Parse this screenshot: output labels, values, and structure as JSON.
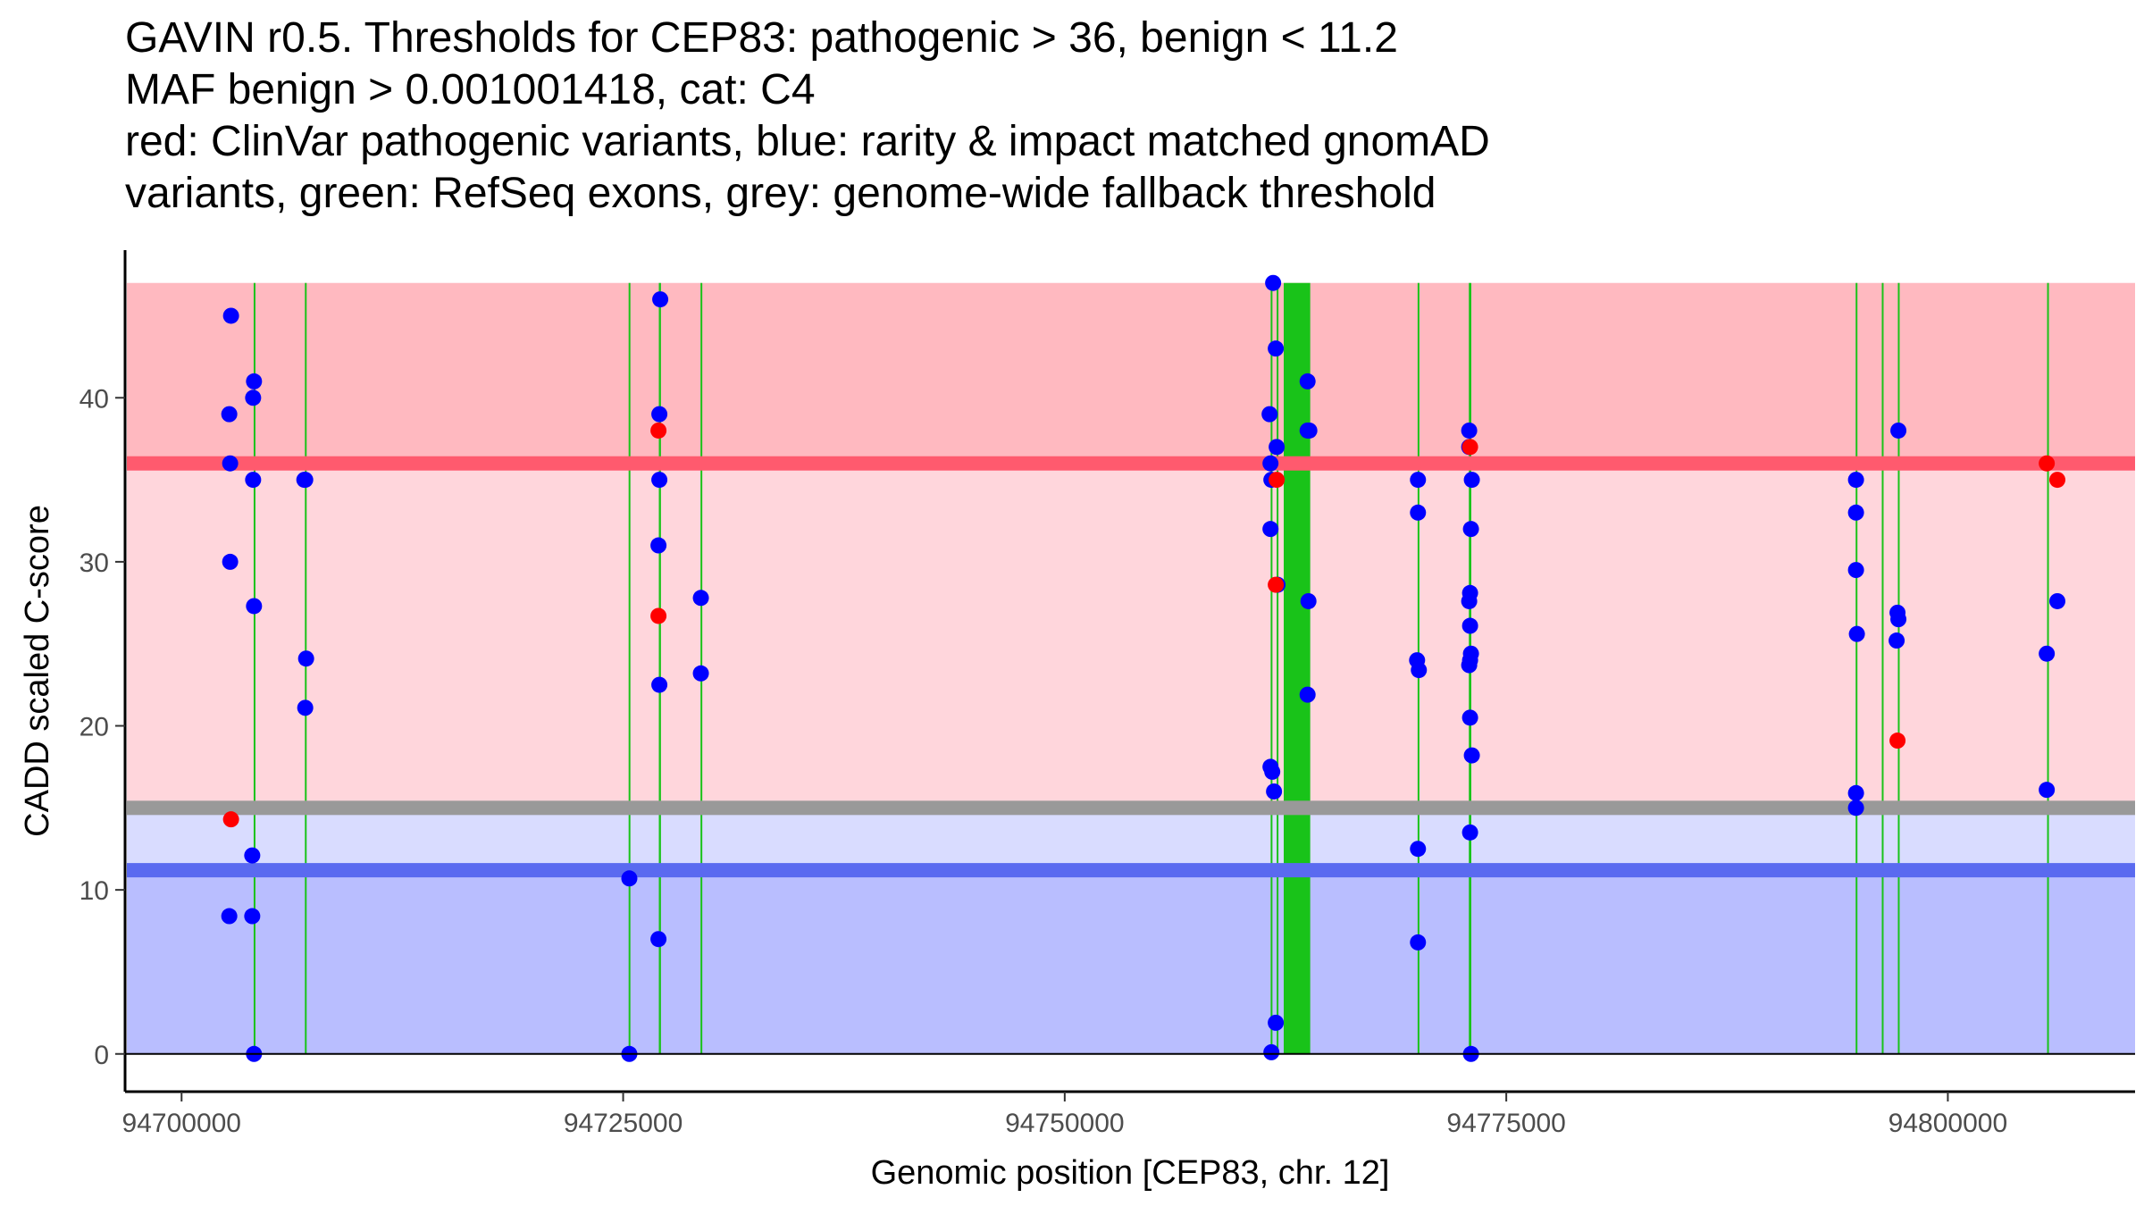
{
  "chart_data": {
    "type": "scatter",
    "title_lines": [
      "GAVIN r0.5. Thresholds for CEP83: pathogenic > 36, benign < 11.2",
      "MAF benign > 0.001001418, cat: C4",
      "red: ClinVar pathogenic variants, blue: rarity & impact matched gnomAD",
      "variants, green: RefSeq exons, grey: genome-wide fallback threshold"
    ],
    "xlabel": "Genomic position [CEP83, chr. 12]",
    "ylabel": "CADD scaled C-score",
    "xlim": [
      94696800,
      94810600
    ],
    "ylim": [
      -2.3,
      49
    ],
    "x_ticks": [
      94700000,
      94725000,
      94750000,
      94775000,
      94800000
    ],
    "x_tick_labels": [
      "94700000",
      "94725000",
      "94750000",
      "94775000",
      "94800000"
    ],
    "y_ticks": [
      0,
      10,
      20,
      30,
      40
    ],
    "y_tick_labels": [
      "0",
      "10",
      "20",
      "30",
      "40"
    ],
    "thresholds": {
      "pathogenic": 36,
      "benign": 11.2,
      "fallback": 15,
      "max": 47
    },
    "colors": {
      "pathogenic_zone": "#ffb9c0",
      "mid_zone": "#ffd6dc",
      "benign_light_zone": "#d9dcff",
      "benign_zone": "#b9beff",
      "pathogenic_line": "#ff5a6e",
      "benign_line": "#5a6af0",
      "fallback_line": "#999999",
      "exon": "#19c319",
      "clinvar": "#ff0000",
      "gnomad": "#0000ff"
    },
    "exons": [
      {
        "start": 94704080,
        "end": 94704180
      },
      {
        "start": 94706980,
        "end": 94707060
      },
      {
        "start": 94725310,
        "end": 94725390
      },
      {
        "start": 94727020,
        "end": 94727140
      },
      {
        "start": 94729380,
        "end": 94729440
      },
      {
        "start": 94761660,
        "end": 94761720
      },
      {
        "start": 94762000,
        "end": 94762080
      },
      {
        "start": 94762400,
        "end": 94763900
      },
      {
        "start": 94769980,
        "end": 94770040
      },
      {
        "start": 94772880,
        "end": 94773020
      },
      {
        "start": 94794780,
        "end": 94794840
      },
      {
        "start": 94796260,
        "end": 94796320
      },
      {
        "start": 94797170,
        "end": 94797230
      },
      {
        "start": 94805620,
        "end": 94805680
      }
    ],
    "series": [
      {
        "name": "gnomAD",
        "color": "#0000ff",
        "points": [
          [
            94702800,
            45
          ],
          [
            94702700,
            39
          ],
          [
            94702750,
            36
          ],
          [
            94702750,
            30
          ],
          [
            94702700,
            8.4
          ],
          [
            94704100,
            41
          ],
          [
            94704050,
            40
          ],
          [
            94704050,
            35
          ],
          [
            94704100,
            27.3
          ],
          [
            94704000,
            12.1
          ],
          [
            94704000,
            8.4
          ],
          [
            94704100,
            0
          ],
          [
            94706950,
            35
          ],
          [
            94707000,
            35
          ],
          [
            94707050,
            24.1
          ],
          [
            94707000,
            21.1
          ],
          [
            94725350,
            10.7
          ],
          [
            94725350,
            0
          ],
          [
            94727100,
            46
          ],
          [
            94727050,
            39
          ],
          [
            94727050,
            35
          ],
          [
            94727000,
            31
          ],
          [
            94727050,
            22.5
          ],
          [
            94727000,
            7
          ],
          [
            94729400,
            27.8
          ],
          [
            94729400,
            23.2
          ],
          [
            94761800,
            47
          ],
          [
            94761950,
            43
          ],
          [
            94761600,
            39
          ],
          [
            94761650,
            36
          ],
          [
            94762000,
            37
          ],
          [
            94761700,
            35
          ],
          [
            94761650,
            32
          ],
          [
            94762050,
            28.6
          ],
          [
            94761650,
            17.5
          ],
          [
            94761750,
            17.2
          ],
          [
            94761850,
            16
          ],
          [
            94761950,
            1.9
          ],
          [
            94761700,
            0.1
          ],
          [
            94763750,
            41
          ],
          [
            94763750,
            38
          ],
          [
            94763850,
            38
          ],
          [
            94763800,
            27.6
          ],
          [
            94763750,
            21.9
          ],
          [
            94770000,
            35
          ],
          [
            94770000,
            33
          ],
          [
            94769950,
            24
          ],
          [
            94770050,
            23.4
          ],
          [
            94770000,
            12.5
          ],
          [
            94770000,
            6.8
          ],
          [
            94772900,
            38
          ],
          [
            94772900,
            37
          ],
          [
            94773050,
            35
          ],
          [
            94773000,
            32
          ],
          [
            94772950,
            28.1
          ],
          [
            94772900,
            27.6
          ],
          [
            94772950,
            26.1
          ],
          [
            94773000,
            24.4
          ],
          [
            94772950,
            24
          ],
          [
            94772900,
            23.7
          ],
          [
            94772950,
            20.5
          ],
          [
            94773050,
            18.2
          ],
          [
            94772950,
            13.5
          ],
          [
            94773000,
            0
          ],
          [
            94794800,
            35
          ],
          [
            94794800,
            33
          ],
          [
            94794800,
            29.5
          ],
          [
            94794850,
            25.6
          ],
          [
            94794800,
            15.9
          ],
          [
            94794800,
            15
          ],
          [
            94797200,
            38
          ],
          [
            94797150,
            26.9
          ],
          [
            94797200,
            26.5
          ],
          [
            94797100,
            25.2
          ],
          [
            94805600,
            24.4
          ],
          [
            94805600,
            16.1
          ],
          [
            94806200,
            27.6
          ]
        ]
      },
      {
        "name": "ClinVar",
        "color": "#ff0000",
        "points": [
          [
            94702800,
            14.3
          ],
          [
            94727000,
            38
          ],
          [
            94727000,
            26.7
          ],
          [
            94762000,
            35
          ],
          [
            94761950,
            28.6
          ],
          [
            94772950,
            37
          ],
          [
            94797150,
            19.1
          ],
          [
            94805600,
            36
          ],
          [
            94806200,
            35
          ]
        ]
      }
    ]
  }
}
